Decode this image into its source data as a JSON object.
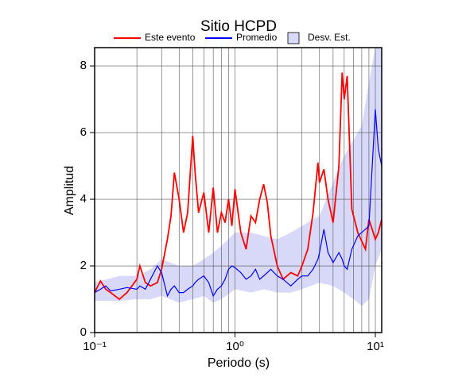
{
  "chart_data": {
    "type": "line",
    "title": "Sitio HCPD",
    "xlabel": "Periodo (s)",
    "ylabel": "Amplitud",
    "xscale": "log",
    "xlim": [
      0.1,
      11.1
    ],
    "ylim": [
      0,
      8.55
    ],
    "xticks": [
      {
        "value": 0.1,
        "label": "10⁻¹"
      },
      {
        "value": 1,
        "label": "10⁰"
      },
      {
        "value": 10,
        "label": "10¹"
      }
    ],
    "xgrid": [
      0.2,
      0.3,
      0.4,
      0.5,
      0.6,
      0.7,
      0.8,
      0.9,
      2,
      3,
      4,
      5,
      6,
      7,
      8,
      9
    ],
    "yticks": [
      0,
      2,
      4,
      6,
      8
    ],
    "grid": true,
    "x": [
      0.1,
      0.11,
      0.12,
      0.13,
      0.15,
      0.17,
      0.2,
      0.21,
      0.23,
      0.25,
      0.28,
      0.3,
      0.33,
      0.35,
      0.37,
      0.4,
      0.43,
      0.46,
      0.5,
      0.52,
      0.55,
      0.6,
      0.65,
      0.7,
      0.75,
      0.8,
      0.85,
      0.9,
      0.95,
      1.0,
      1.1,
      1.2,
      1.3,
      1.4,
      1.5,
      1.6,
      1.7,
      1.8,
      2.0,
      2.2,
      2.5,
      2.8,
      3.0,
      3.3,
      3.6,
      3.9,
      4.0,
      4.3,
      4.6,
      5.0,
      5.5,
      5.8,
      6.0,
      6.3,
      6.8,
      7.5,
      8.5,
      9.0,
      10.0,
      10.5,
      11.1
    ],
    "series": [
      {
        "name": "Este evento",
        "color": "#ff0000",
        "values": [
          1.2,
          1.55,
          1.3,
          1.2,
          1.0,
          1.2,
          1.6,
          2.0,
          1.5,
          1.4,
          1.5,
          1.9,
          2.8,
          3.5,
          4.8,
          4.0,
          3.0,
          3.6,
          5.9,
          4.8,
          3.6,
          4.2,
          3.0,
          4.35,
          3.0,
          3.6,
          3.3,
          4.0,
          3.2,
          4.3,
          3.0,
          2.5,
          3.5,
          3.3,
          4.0,
          4.45,
          3.9,
          2.9,
          2.0,
          1.6,
          1.8,
          1.7,
          2.0,
          2.5,
          3.6,
          5.1,
          4.5,
          4.9,
          4.0,
          3.3,
          5.0,
          7.8,
          7.0,
          7.7,
          3.7,
          3.0,
          2.5,
          3.4,
          2.8,
          3.0,
          3.4
        ]
      },
      {
        "name": "Promedio",
        "color": "#0000ff",
        "values": [
          1.2,
          1.3,
          1.4,
          1.25,
          1.3,
          1.35,
          1.3,
          1.4,
          1.3,
          1.6,
          2.0,
          1.8,
          1.1,
          1.3,
          1.4,
          1.2,
          1.2,
          1.3,
          1.4,
          1.5,
          1.6,
          1.7,
          1.5,
          1.1,
          1.3,
          1.4,
          1.6,
          1.9,
          2.0,
          1.95,
          1.8,
          1.6,
          1.7,
          1.9,
          1.6,
          1.7,
          1.8,
          1.9,
          1.7,
          1.6,
          1.4,
          1.6,
          1.7,
          1.7,
          1.9,
          2.2,
          2.4,
          3.1,
          2.4,
          2.1,
          2.4,
          2.2,
          2.0,
          1.9,
          2.5,
          2.9,
          3.1,
          3.2,
          6.7,
          5.5,
          5.0
        ]
      }
    ],
    "band": {
      "name": "Desv. Est.",
      "color": "#d8d8f8",
      "x": [
        0.1,
        0.15,
        0.2,
        0.25,
        0.3,
        0.4,
        0.5,
        0.6,
        0.7,
        0.8,
        1.0,
        1.3,
        1.6,
        2.0,
        2.5,
        3.0,
        4.0,
        5.0,
        6.0,
        7.0,
        8.0,
        9.0,
        10.0,
        11.1
      ],
      "lower": [
        0.95,
        0.95,
        1.0,
        1.0,
        1.1,
        0.9,
        1.0,
        1.1,
        0.9,
        1.0,
        1.3,
        1.2,
        1.3,
        1.2,
        1.2,
        1.3,
        1.5,
        1.4,
        1.2,
        1.0,
        0.8,
        1.0,
        2.0,
        2.5
      ],
      "upper": [
        1.5,
        1.7,
        1.7,
        1.9,
        2.2,
        2.0,
        2.0,
        2.2,
        2.4,
        2.6,
        3.0,
        3.0,
        2.9,
        2.8,
        3.0,
        3.2,
        3.5,
        4.5,
        5.3,
        5.8,
        6.2,
        7.5,
        8.55,
        8.55
      ]
    }
  }
}
